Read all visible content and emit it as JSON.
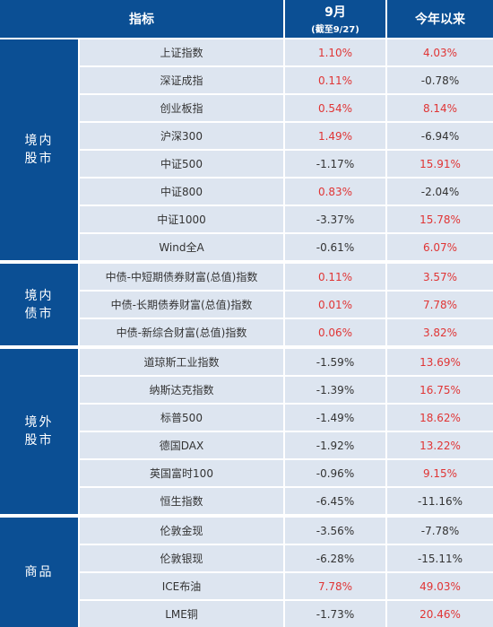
{
  "header": {
    "indicator": "指标",
    "sep": "9月",
    "sep_sub": "(截至9/27)",
    "ytd": "今年以来"
  },
  "groups": [
    {
      "label": "境内股市",
      "rows": [
        {
          "name": "上证指数",
          "sep": "1.10%",
          "ytd": "4.03%"
        },
        {
          "name": "深证成指",
          "sep": "0.11%",
          "ytd": "-0.78%"
        },
        {
          "name": "创业板指",
          "sep": "0.54%",
          "ytd": "8.14%"
        },
        {
          "name": "沪深300",
          "sep": "1.49%",
          "ytd": "-6.94%"
        },
        {
          "name": "中证500",
          "sep": "-1.17%",
          "ytd": "15.91%"
        },
        {
          "name": "中证800",
          "sep": "0.83%",
          "ytd": "-2.04%"
        },
        {
          "name": "中证1000",
          "sep": "-3.37%",
          "ytd": "15.78%"
        },
        {
          "name": "Wind全A",
          "sep": "-0.61%",
          "ytd": "6.07%"
        }
      ]
    },
    {
      "label": "境内债市",
      "rows": [
        {
          "name": "中债-中短期债券财富(总值)指数",
          "sep": "0.11%",
          "ytd": "3.57%"
        },
        {
          "name": "中债-长期债券财富(总值)指数",
          "sep": "0.01%",
          "ytd": "7.78%"
        },
        {
          "name": "中债-新综合财富(总值)指数",
          "sep": "0.06%",
          "ytd": "3.82%"
        }
      ]
    },
    {
      "label": "境外股市",
      "rows": [
        {
          "name": "道琼斯工业指数",
          "sep": "-1.59%",
          "ytd": "13.69%"
        },
        {
          "name": "纳斯达克指数",
          "sep": "-1.39%",
          "ytd": "16.75%"
        },
        {
          "name": "标普500",
          "sep": "-1.49%",
          "ytd": "18.62%"
        },
        {
          "name": "德国DAX",
          "sep": "-1.92%",
          "ytd": "13.22%"
        },
        {
          "name": "英国富时100",
          "sep": "-0.96%",
          "ytd": "9.15%"
        },
        {
          "name": "恒生指数",
          "sep": "-6.45%",
          "ytd": "-11.16%"
        }
      ]
    },
    {
      "label": "商品",
      "rows": [
        {
          "name": "伦敦金现",
          "sep": "-3.56%",
          "ytd": "-7.78%"
        },
        {
          "name": "伦敦银现",
          "sep": "-6.28%",
          "ytd": "-15.11%"
        },
        {
          "name": "ICE布油",
          "sep": "7.78%",
          "ytd": "49.03%"
        },
        {
          "name": "LME铜",
          "sep": "-1.73%",
          "ytd": "20.46%"
        }
      ]
    }
  ],
  "colors": {
    "header_bg": "#0b4f94",
    "row_bg": "#dde5f0",
    "positive": "#e03535",
    "negative": "#333333"
  }
}
